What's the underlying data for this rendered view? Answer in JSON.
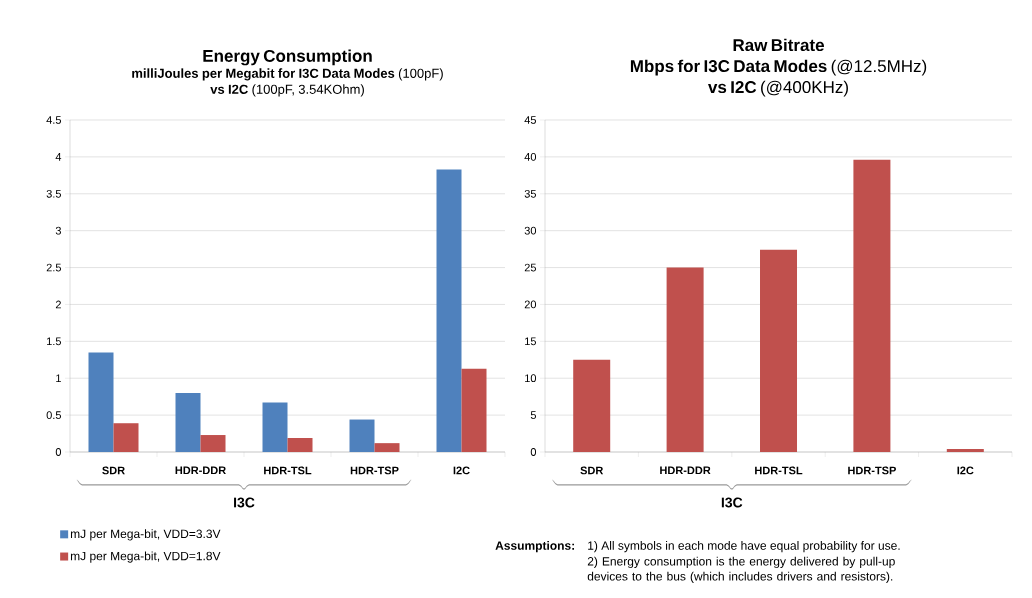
{
  "chart_data": [
    {
      "type": "bar",
      "title": "Energy Consumption",
      "subtitle": "**milliJoules per Megabit for I3C Data Modes** (100pF) **vs I2C** (100pF, 3.54KOhm)",
      "categories": [
        "SDR",
        "HDR-DDR",
        "HDR-TSL",
        "HDR-TSP",
        "I2C"
      ],
      "series": [
        {
          "name": "mJ per Mega-bit, VDD=3.3V",
          "color": "#4f81bd",
          "values": [
            1.35,
            0.8,
            0.67,
            0.44,
            3.83
          ]
        },
        {
          "name": "mJ per Mega-bit, VDD=1.8V",
          "color": "#c0504d",
          "values": [
            0.39,
            0.23,
            0.19,
            0.12,
            1.13
          ]
        }
      ],
      "ylim": [
        0,
        4.5
      ],
      "yticks": [
        0,
        0.5,
        1,
        1.5,
        2,
        2.5,
        3,
        3.5,
        4,
        4.5
      ],
      "grid": "y",
      "legend": "bottom",
      "annotations": [
        "I3C"
      ]
    },
    {
      "type": "bar",
      "title": "Raw Bitrate",
      "subtitle": "**Mbps for I3C Data Modes** (@12.5MHz) **vs I2C** (@400KHz)",
      "categories": [
        "SDR",
        "HDR-DDR",
        "HDR-TSL",
        "HDR-TSP",
        "I2C"
      ],
      "series": [
        {
          "color": "#c0504d",
          "values": [
            12.5,
            25,
            27.4,
            39.6,
            0.4
          ]
        }
      ],
      "ylim": [
        0,
        45
      ],
      "yticks": [
        0,
        5,
        10,
        15,
        20,
        25,
        30,
        35,
        40,
        45
      ],
      "grid": "y",
      "annotations": [
        "I3C",
        "**Assumptions:**",
        "1) All symbols in each mode have equal probability for use.",
        "2) Energy consumption is the energy delivered by pull-up devices to the bus (which includes drivers and resistors)."
      ]
    }
  ]
}
